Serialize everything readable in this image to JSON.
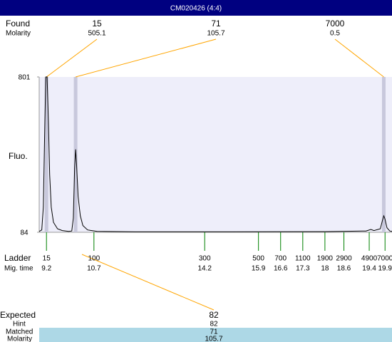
{
  "chart_data": {
    "type": "line",
    "title": "CM020426 (4:4)",
    "ylabel": "Fluo.",
    "xlim": [
      8.97,
      20.12
    ],
    "ylim": [
      84,
      801
    ],
    "yticks": [
      84,
      801
    ],
    "series": [
      {
        "color": "#000000",
        "x": [
          8.97,
          9.05,
          9.1,
          9.15,
          9.18,
          9.22,
          9.26,
          9.3,
          9.35,
          9.42,
          9.55,
          9.7,
          9.9,
          10.0,
          10.05,
          10.09,
          10.12,
          10.15,
          10.2,
          10.27,
          10.35,
          10.5,
          10.8,
          12,
          15,
          18,
          19.3,
          19.45,
          19.55,
          19.75,
          19.82,
          19.86,
          19.9,
          19.96,
          20.05,
          20.12
        ],
        "values": [
          88,
          95,
          200,
          600,
          801,
          801,
          600,
          350,
          200,
          130,
          100,
          92,
          88,
          90,
          150,
          380,
          467,
          400,
          250,
          160,
          115,
          95,
          88,
          86,
          86,
          87,
          90,
          97,
          92,
          100,
          140,
          160,
          145,
          105,
          90,
          88
        ]
      }
    ],
    "found": {
      "label": "Found",
      "sublabel": "Molarity",
      "color": "#ffa500",
      "band_color": "#c8c8dc",
      "x": [
        9.2,
        10.12,
        19.86
      ],
      "sizes": [
        15,
        71,
        7000
      ],
      "molarity": [
        505.1,
        105.7,
        0.5
      ]
    },
    "ladder": {
      "label": "Ladder",
      "sublabel": "Mig. time",
      "color": "#008000",
      "sizes": [
        15,
        100,
        300,
        500,
        700,
        1100,
        1900,
        2900,
        4900,
        7000
      ],
      "times": [
        9.2,
        10.7,
        14.2,
        15.9,
        16.6,
        17.3,
        18,
        18.6,
        19.4,
        19.9
      ]
    },
    "expected": {
      "labels": [
        "Expected",
        "Hint",
        "Matched",
        "Molarity"
      ],
      "values": [
        82,
        82,
        71,
        105.7
      ],
      "band_color": "#add8e6"
    }
  }
}
